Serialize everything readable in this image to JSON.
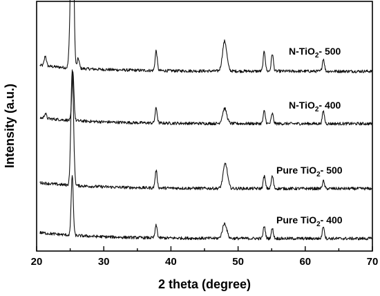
{
  "chart_data": {
    "type": "line",
    "title": "",
    "xlabel": "2 theta (degree)",
    "ylabel": "Intensity (a.u.)",
    "xlim": [
      20,
      70
    ],
    "xticks": [
      20,
      30,
      40,
      50,
      60,
      70
    ],
    "yticks_shown": false,
    "grid": false,
    "legend": "inline labels above each trace, right side",
    "series": [
      {
        "name": "N-TiO2- 500",
        "label_main": "N-TiO",
        "label_sub": "2",
        "label_tail": "- 500",
        "baseline": 0.72,
        "peaks": [
          {
            "x": 21.3,
            "h": 0.04
          },
          {
            "x": 24.9,
            "h": 0.05
          },
          {
            "x": 25.3,
            "h": 0.91
          },
          {
            "x": 26.2,
            "h": 0.04
          },
          {
            "x": 37.8,
            "h": 0.08
          },
          {
            "x": 48.0,
            "h": 0.12
          },
          {
            "x": 53.9,
            "h": 0.08
          },
          {
            "x": 55.1,
            "h": 0.07
          },
          {
            "x": 62.7,
            "h": 0.05
          }
        ]
      },
      {
        "name": "N-TiO2- 400",
        "label_main": "N-TiO",
        "label_sub": "2",
        "label_tail": "- 400",
        "baseline": 0.51,
        "peaks": [
          {
            "x": 21.3,
            "h": 0.02
          },
          {
            "x": 25.4,
            "h": 0.2
          },
          {
            "x": 37.8,
            "h": 0.06
          },
          {
            "x": 48.0,
            "h": 0.06
          },
          {
            "x": 53.9,
            "h": 0.05
          },
          {
            "x": 55.1,
            "h": 0.04
          },
          {
            "x": 62.7,
            "h": 0.05
          }
        ]
      },
      {
        "name": "Pure TiO2- 500",
        "label_main": "Pure TiO",
        "label_sub": "2",
        "label_tail": "- 500",
        "baseline": 0.25,
        "peaks": [
          {
            "x": 25.3,
            "h": 0.46
          },
          {
            "x": 37.8,
            "h": 0.07
          },
          {
            "x": 48.1,
            "h": 0.1
          },
          {
            "x": 53.9,
            "h": 0.05
          },
          {
            "x": 55.1,
            "h": 0.05
          },
          {
            "x": 62.7,
            "h": 0.03
          }
        ]
      },
      {
        "name": "Pure TiO2- 400",
        "label_main": "Pure TiO",
        "label_sub": "2",
        "label_tail": "- 400",
        "baseline": 0.05,
        "peaks": [
          {
            "x": 25.3,
            "h": 0.24
          },
          {
            "x": 37.8,
            "h": 0.05
          },
          {
            "x": 48.0,
            "h": 0.06
          },
          {
            "x": 53.9,
            "h": 0.05
          },
          {
            "x": 55.1,
            "h": 0.04
          },
          {
            "x": 62.7,
            "h": 0.05
          }
        ]
      }
    ]
  }
}
